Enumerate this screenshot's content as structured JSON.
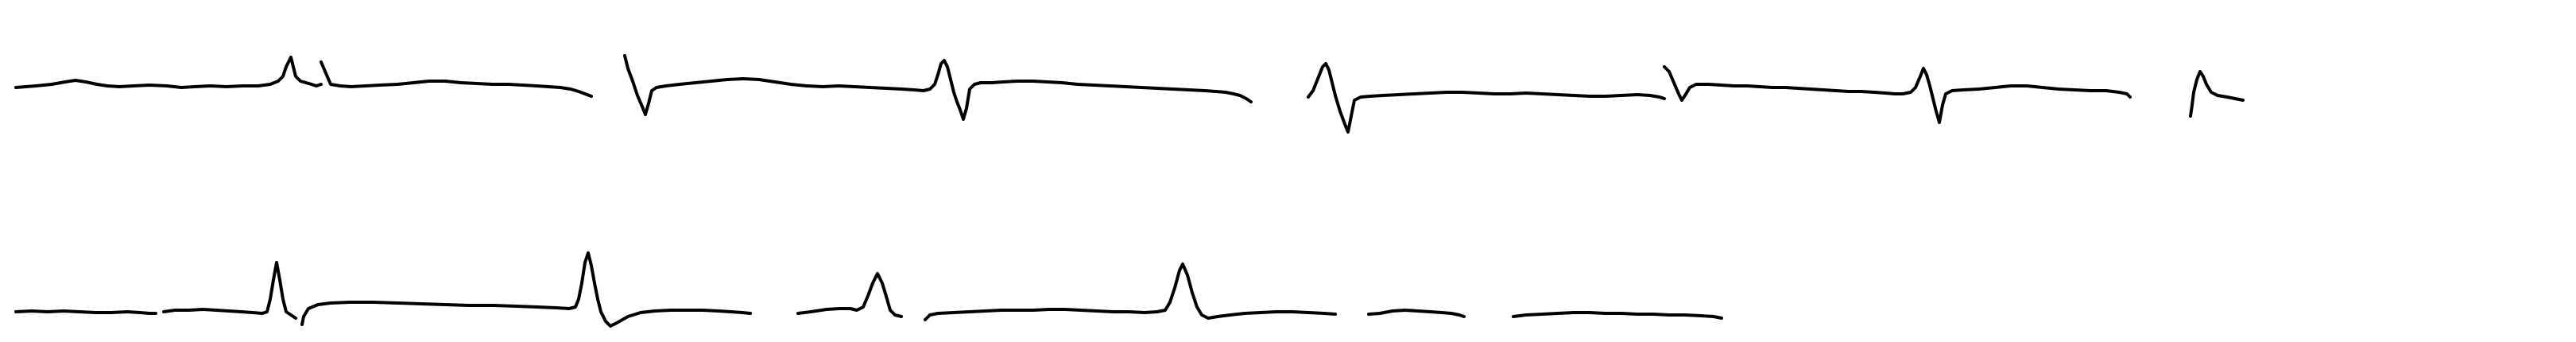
{
  "image": {
    "kind": "ecg-rhythm-strip-scan",
    "background_color": "#ffffff",
    "trace_color": "#000000",
    "strips": [
      {
        "name": "upper-strip"
      },
      {
        "name": "lower-strip"
      }
    ]
  }
}
